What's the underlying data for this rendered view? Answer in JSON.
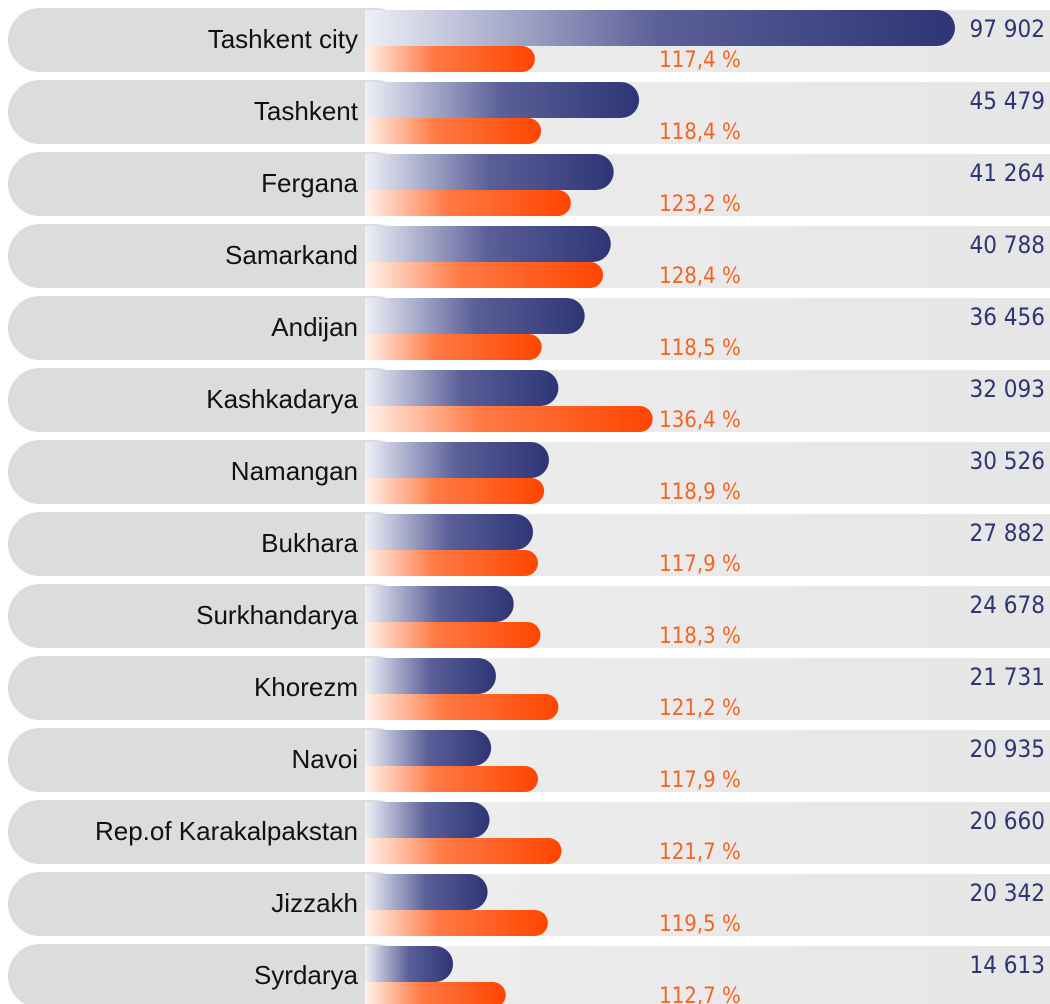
{
  "chart_data": {
    "type": "bar",
    "categories": [
      "Tashkent city",
      "Tashkent",
      "Fergana",
      "Samarkand",
      "Andijan",
      "Kashkadarya",
      "Namangan",
      "Bukhara",
      "Surkhandarya",
      "Khorezm",
      "Navoi",
      "Rep.of Karakalpakstan",
      "Jizzakh",
      "Syrdarya"
    ],
    "series": [
      {
        "color": "#2e3575",
        "values": [
          97902,
          45479,
          41264,
          40788,
          36456,
          32093,
          30526,
          27882,
          24678,
          21731,
          20935,
          20660,
          20342,
          14613
        ],
        "value_labels": [
          "97 902",
          "45 479",
          "41 264",
          "40 788",
          "36 456",
          "32 093",
          "30 526",
          "27 882",
          "24 678",
          "21 731",
          "20 935",
          "20 660",
          "20 342",
          "14 613"
        ]
      },
      {
        "color": "#ff4500",
        "values": [
          117.4,
          118.4,
          123.2,
          128.4,
          118.5,
          136.4,
          118.9,
          117.9,
          118.3,
          121.2,
          117.9,
          121.7,
          119.5,
          112.7
        ],
        "value_labels": [
          "117,4 %",
          "118,4 %",
          "123,2 %",
          "128,4 %",
          "118,5 %",
          "136,4 %",
          "118,9 %",
          "117,9 %",
          "118,3 %",
          "121,2 %",
          "117,9 %",
          "121,7 %",
          "119,5 %",
          "112,7 %"
        ]
      }
    ]
  }
}
